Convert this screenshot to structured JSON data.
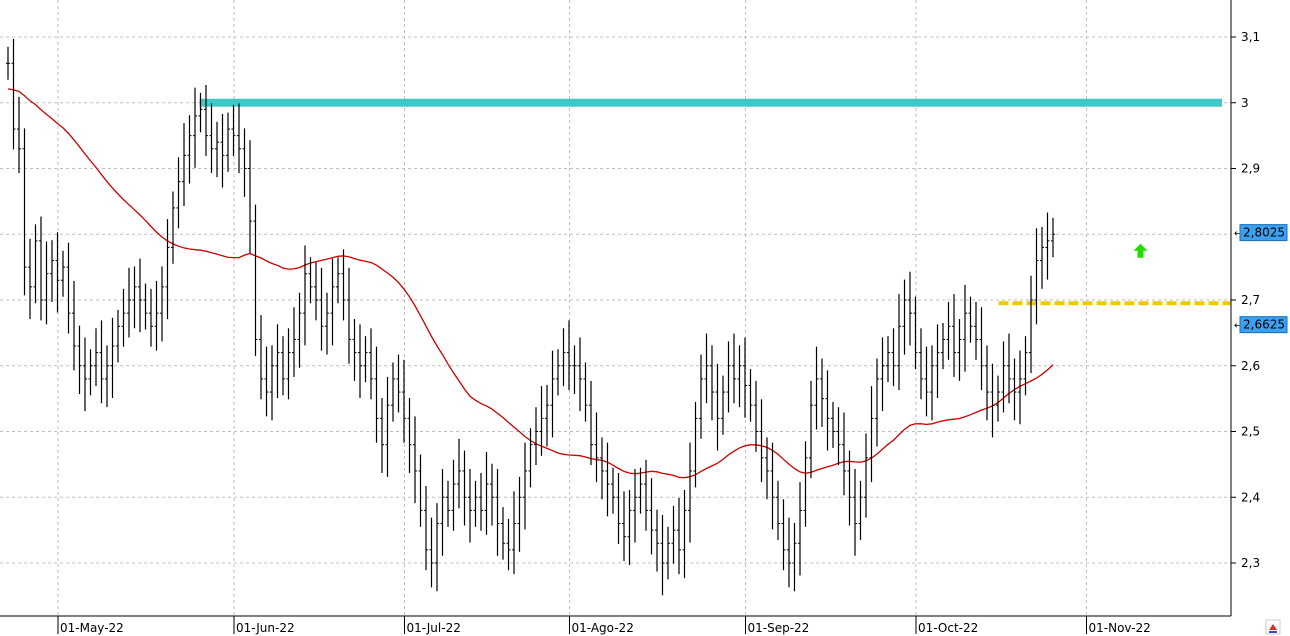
{
  "chart_data": {
    "type": "ohlc",
    "instrument_title": "",
    "colors": {
      "bars": "#000000",
      "moving_average": "#cc0000",
      "resistance_line": "#40c8c8",
      "support_line": "#f0c800",
      "up_arrow": "#22dd00",
      "price_tag_bg": "#3aa0f0",
      "grid": "#bfbfbf"
    },
    "ylim": [
      2.22,
      3.15
    ],
    "y_ticks": [
      {
        "value": 2.3,
        "label": "2,3"
      },
      {
        "value": 2.4,
        "label": "2,4"
      },
      {
        "value": 2.5,
        "label": "2,5"
      },
      {
        "value": 2.6,
        "label": "2,6"
      },
      {
        "value": 2.7,
        "label": "2,7"
      },
      {
        "value": 2.9,
        "label": "2,9"
      },
      {
        "value": 3.0,
        "label": "3"
      },
      {
        "value": 3.1,
        "label": "3,1"
      }
    ],
    "x_ticks": [
      {
        "label": "01-May-22",
        "index": 12
      },
      {
        "label": "01-Jun-22",
        "index": 44
      },
      {
        "label": "01-Jul-22",
        "index": 75
      },
      {
        "label": "01-Ago-22",
        "index": 105
      },
      {
        "label": "01-Sep-22",
        "index": 137
      },
      {
        "label": "01-Oct-22",
        "index": 168
      },
      {
        "label": "01-Nov-22",
        "index": 199
      }
    ],
    "price_tags": [
      {
        "value": 2.8025,
        "label": "2,8025"
      },
      {
        "value": 2.6625,
        "label": "2,6625"
      }
    ],
    "resistance": {
      "value": 3.0,
      "from_index": 35,
      "to_index": 225
    },
    "support": {
      "value": 2.695,
      "from_index": 181,
      "to_index": 224
    },
    "arrow_up": {
      "index": 209,
      "value": 2.775
    },
    "close_series": [
      3.06,
      2.96,
      2.93,
      2.75,
      2.72,
      2.79,
      2.7,
      2.74,
      2.76,
      2.73,
      2.75,
      2.68,
      2.63,
      2.6,
      2.58,
      2.6,
      2.62,
      2.58,
      2.6,
      2.63,
      2.66,
      2.68,
      2.7,
      2.72,
      2.7,
      2.68,
      2.66,
      2.68,
      2.72,
      2.78,
      2.84,
      2.88,
      2.92,
      2.95,
      2.98,
      2.99,
      2.95,
      2.93,
      2.94,
      2.92,
      2.96,
      2.95,
      2.93,
      2.9,
      2.82,
      2.64,
      2.58,
      2.56,
      2.6,
      2.62,
      2.58,
      2.62,
      2.64,
      2.68,
      2.74,
      2.72,
      2.7,
      2.66,
      2.68,
      2.72,
      2.74,
      2.7,
      2.64,
      2.62,
      2.6,
      2.62,
      2.58,
      2.52,
      2.48,
      2.54,
      2.58,
      2.56,
      2.52,
      2.48,
      2.44,
      2.38,
      2.32,
      2.3,
      2.36,
      2.4,
      2.38,
      2.42,
      2.44,
      2.4,
      2.38,
      2.4,
      2.38,
      2.42,
      2.4,
      2.36,
      2.33,
      2.32,
      2.36,
      2.4,
      2.44,
      2.48,
      2.5,
      2.52,
      2.54,
      2.58,
      2.6,
      2.62,
      2.6,
      2.6,
      2.58,
      2.54,
      2.48,
      2.46,
      2.44,
      2.42,
      2.4,
      2.36,
      2.34,
      2.38,
      2.4,
      2.42,
      2.38,
      2.35,
      2.33,
      2.3,
      2.33,
      2.35,
      2.32,
      2.38,
      2.44,
      2.52,
      2.58,
      2.6,
      2.56,
      2.52,
      2.56,
      2.6,
      2.58,
      2.6,
      2.57,
      2.54,
      2.5,
      2.46,
      2.44,
      2.4,
      2.36,
      2.32,
      2.3,
      2.33,
      2.38,
      2.46,
      2.54,
      2.58,
      2.55,
      2.52,
      2.5,
      2.48,
      2.44,
      2.4,
      2.36,
      2.4,
      2.46,
      2.52,
      2.58,
      2.6,
      2.62,
      2.6,
      2.66,
      2.7,
      2.68,
      2.62,
      2.58,
      2.56,
      2.6,
      2.62,
      2.64,
      2.66,
      2.62,
      2.64,
      2.68,
      2.66,
      2.64,
      2.6,
      2.56,
      2.54,
      2.56,
      2.6,
      2.58,
      2.56,
      2.58,
      2.62,
      2.7,
      2.76,
      2.78,
      2.79,
      2.8
    ]
  },
  "footer": {
    "logo_text": ""
  }
}
